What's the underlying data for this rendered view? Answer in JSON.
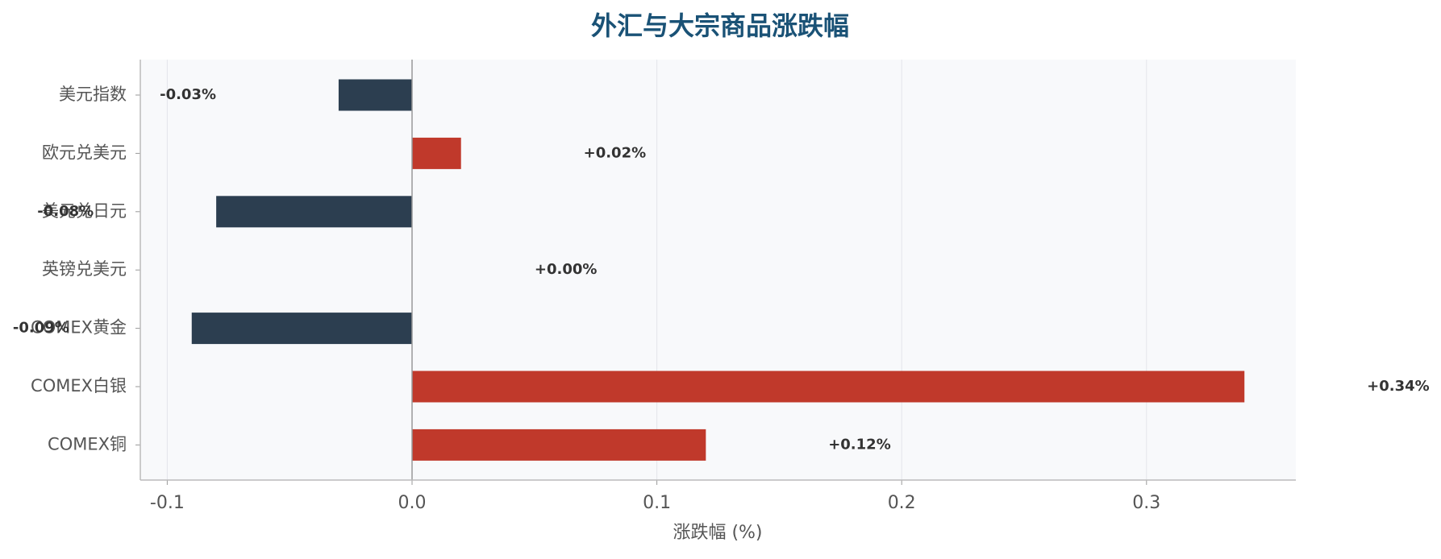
{
  "chart_data": {
    "type": "barh",
    "title": "外汇与大宗商品涨跌幅",
    "x_label": "涨跌幅 (%)",
    "categories": [
      "美元指数",
      "欧元兑美元",
      "美元兑日元",
      "英镑兑美元",
      "COMEX黄金",
      "COMEX白银",
      "COMEX铜"
    ],
    "values": [
      -0.03,
      0.02,
      -0.08,
      0.0,
      -0.09,
      0.34,
      0.12
    ],
    "value_labels": [
      "-0.03%",
      "+0.02%",
      "-0.08%",
      "+0.00%",
      "-0.09%",
      "+0.34%",
      "+0.12%"
    ],
    "colors": [
      "#2c3e50",
      "#c0392b",
      "#2c3e50",
      "#c0392b",
      "#2c3e50",
      "#c0392b",
      "#c0392b"
    ],
    "xlim": [
      -0.111,
      0.361
    ],
    "xticks": [
      -0.1,
      {
        "value": 0,
        "label": "0.0"
      },
      0.1,
      0.2,
      0.3
    ],
    "grid": true
  }
}
